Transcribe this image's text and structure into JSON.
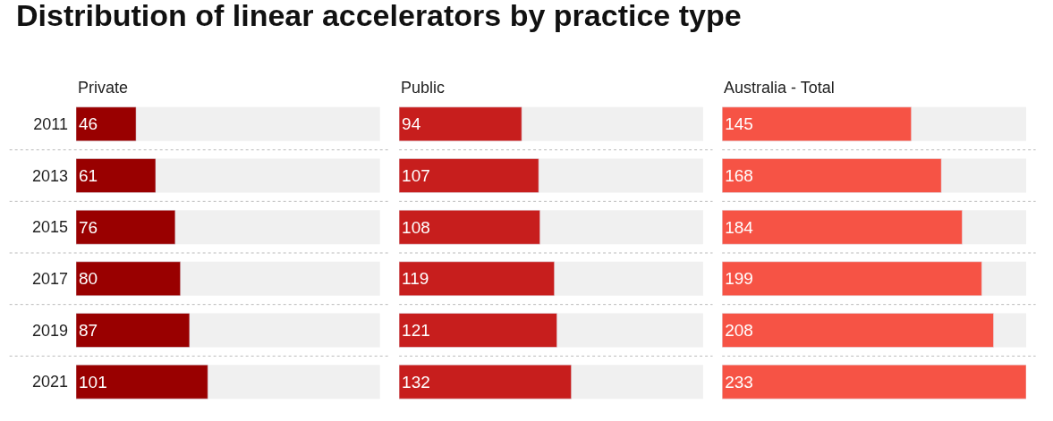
{
  "chart_data": [
    {
      "type": "bar",
      "orientation": "horizontal",
      "title": "Private",
      "annotations": [
        "Distribution of linear accelerators by practice type"
      ],
      "categories": [
        "2011",
        "2013",
        "2015",
        "2017",
        "2019",
        "2021"
      ],
      "color": "#990000",
      "values": [
        46,
        61,
        76,
        80,
        87,
        101
      ],
      "data_labels": true,
      "tick_labels": "y"
    },
    {
      "type": "bar",
      "orientation": "horizontal",
      "title": "Public",
      "categories": [
        "2011",
        "2013",
        "2015",
        "2017",
        "2019",
        "2021"
      ],
      "color": "#c71e1d",
      "values": [
        94,
        107,
        108,
        119,
        121,
        132
      ],
      "data_labels": true,
      "tick_labels": false
    },
    {
      "type": "bar",
      "orientation": "horizontal",
      "title": "Australia - Total",
      "categories": [
        "2011",
        "2013",
        "2015",
        "2017",
        "2019",
        "2021"
      ],
      "color": "#f65345",
      "values": [
        145,
        168,
        184,
        199,
        208,
        233
      ],
      "data_labels": true,
      "tick_labels": false
    }
  ]
}
